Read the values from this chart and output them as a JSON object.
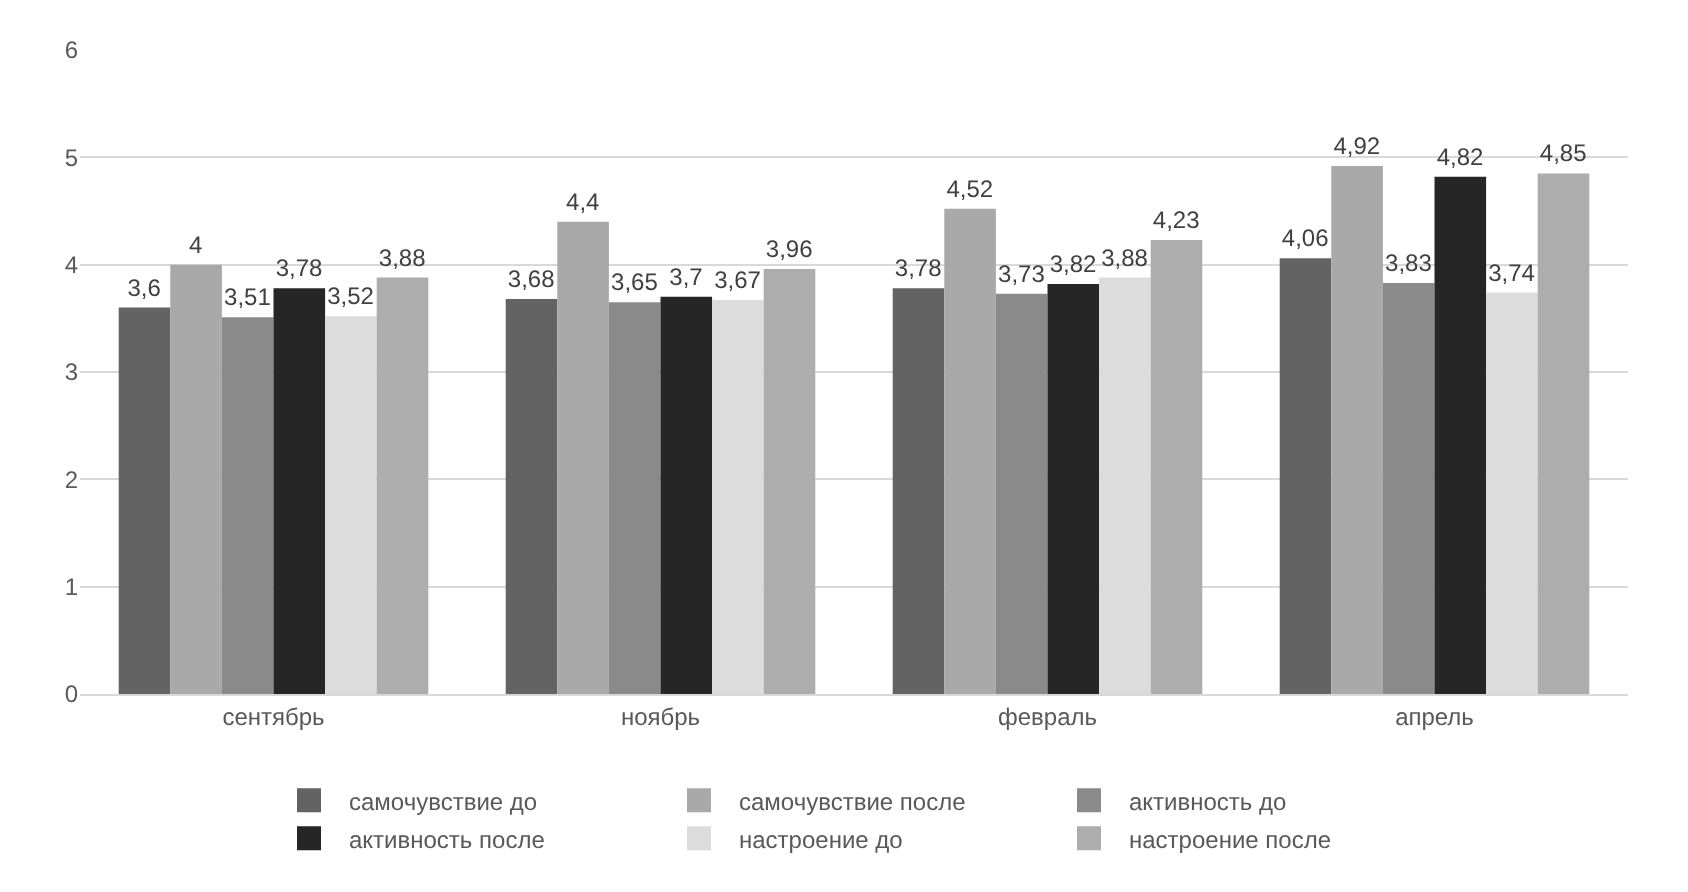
{
  "chart_data": {
    "type": "bar",
    "categories": [
      "сентябрь",
      "ноябрь",
      "февраль",
      "апрель"
    ],
    "series": [
      {
        "name": "самочувствие до",
        "color": "#636363",
        "values": [
          3.6,
          3.68,
          3.78,
          4.06
        ],
        "value_labels": [
          "3,6",
          "3,68",
          "3,78",
          "4,06"
        ]
      },
      {
        "name": "самочувствие после",
        "color": "#a9a9a9",
        "values": [
          4,
          4.4,
          4.52,
          4.92
        ],
        "value_labels": [
          "4",
          "4,4",
          "4,52",
          "4,92"
        ]
      },
      {
        "name": "активность до",
        "color": "#8a8a8a",
        "values": [
          3.51,
          3.65,
          3.73,
          3.83
        ],
        "value_labels": [
          "3,51",
          "3,65",
          "3,73",
          "3,83"
        ]
      },
      {
        "name": "активность после",
        "color": "#262626",
        "values": [
          3.78,
          3.7,
          3.82,
          4.82
        ],
        "value_labels": [
          "3,78",
          "3,7",
          "3,82",
          "4,82"
        ]
      },
      {
        "name": "настроение до",
        "color": "#dcdcdc",
        "values": [
          3.52,
          3.67,
          3.88,
          3.74
        ],
        "value_labels": [
          "3,52",
          "3,67",
          "3,88",
          "3,74"
        ]
      },
      {
        "name": "настроение после",
        "color": "#adadad",
        "values": [
          3.88,
          3.96,
          4.23,
          4.85
        ],
        "value_labels": [
          "3,88",
          "3,96",
          "4,23",
          "4,85"
        ]
      }
    ],
    "ylim": [
      0,
      6
    ],
    "yticks": [
      0,
      1,
      2,
      3,
      4,
      5,
      6
    ],
    "grid": "y",
    "legend": "bottom"
  }
}
